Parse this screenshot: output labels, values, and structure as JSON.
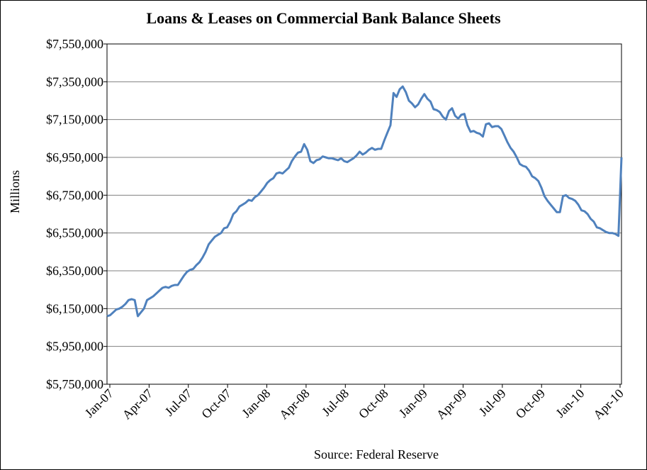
{
  "chart_data": {
    "type": "line",
    "title": "Loans & Leases on Commercial Bank Balance Sheets",
    "ylabel": "Millions",
    "xlabel": "",
    "source": "Source:  Federal Reserve",
    "ylim": [
      5750000,
      7550000
    ],
    "yticks": [
      5750000,
      5950000,
      6150000,
      6350000,
      6550000,
      6750000,
      6950000,
      7150000,
      7350000,
      7550000
    ],
    "ytick_labels": [
      "$5,750,000",
      "$5,950,000",
      "$6,150,000",
      "$6,350,000",
      "$6,550,000",
      "$6,750,000",
      "$6,950,000",
      "$7,150,000",
      "$7,350,000",
      "$7,550,000"
    ],
    "xtick_labels": [
      "Jan-07",
      "Apr-07",
      "Jul-07",
      "Oct-07",
      "Jan-08",
      "Apr-08",
      "Jul-08",
      "Oct-08",
      "Jan-09",
      "Apr-09",
      "Jul-09",
      "Oct-09",
      "Jan-10",
      "Apr-10"
    ],
    "grid": "horizontal",
    "line_color": "#4f81bd",
    "series": [
      {
        "values": [
          6110000,
          6115000,
          6130000,
          6145000,
          6150000,
          6160000,
          6175000,
          6195000,
          6200000,
          6195000,
          6110000,
          6130000,
          6150000,
          6195000,
          6205000,
          6215000,
          6230000,
          6245000,
          6260000,
          6265000,
          6260000,
          6270000,
          6275000,
          6275000,
          6300000,
          6325000,
          6345000,
          6355000,
          6360000,
          6380000,
          6395000,
          6420000,
          6450000,
          6490000,
          6510000,
          6530000,
          6540000,
          6550000,
          6575000,
          6580000,
          6610000,
          6650000,
          6665000,
          6690000,
          6700000,
          6710000,
          6725000,
          6720000,
          6740000,
          6750000,
          6770000,
          6790000,
          6815000,
          6830000,
          6840000,
          6865000,
          6870000,
          6865000,
          6880000,
          6895000,
          6930000,
          6955000,
          6975000,
          6980000,
          7020000,
          6990000,
          6930000,
          6920000,
          6935000,
          6940000,
          6955000,
          6950000,
          6945000,
          6945000,
          6940000,
          6935000,
          6945000,
          6930000,
          6925000,
          6935000,
          6945000,
          6960000,
          6980000,
          6965000,
          6975000,
          6990000,
          7000000,
          6990000,
          6995000,
          6995000,
          7040000,
          7080000,
          7120000,
          7290000,
          7270000,
          7310000,
          7325000,
          7295000,
          7250000,
          7235000,
          7215000,
          7230000,
          7260000,
          7285000,
          7260000,
          7245000,
          7205000,
          7200000,
          7190000,
          7165000,
          7150000,
          7195000,
          7210000,
          7170000,
          7155000,
          7175000,
          7180000,
          7120000,
          7085000,
          7090000,
          7080000,
          7075000,
          7060000,
          7125000,
          7130000,
          7110000,
          7115000,
          7115000,
          7100000,
          7065000,
          7030000,
          7000000,
          6980000,
          6950000,
          6915000,
          6905000,
          6900000,
          6880000,
          6850000,
          6840000,
          6825000,
          6790000,
          6745000,
          6720000,
          6700000,
          6680000,
          6660000,
          6660000,
          6745000,
          6750000,
          6735000,
          6730000,
          6720000,
          6700000,
          6670000,
          6665000,
          6650000,
          6625000,
          6610000,
          6580000,
          6575000,
          6565000,
          6555000,
          6550000,
          6550000,
          6545000,
          6535000,
          6950000
        ]
      }
    ]
  }
}
